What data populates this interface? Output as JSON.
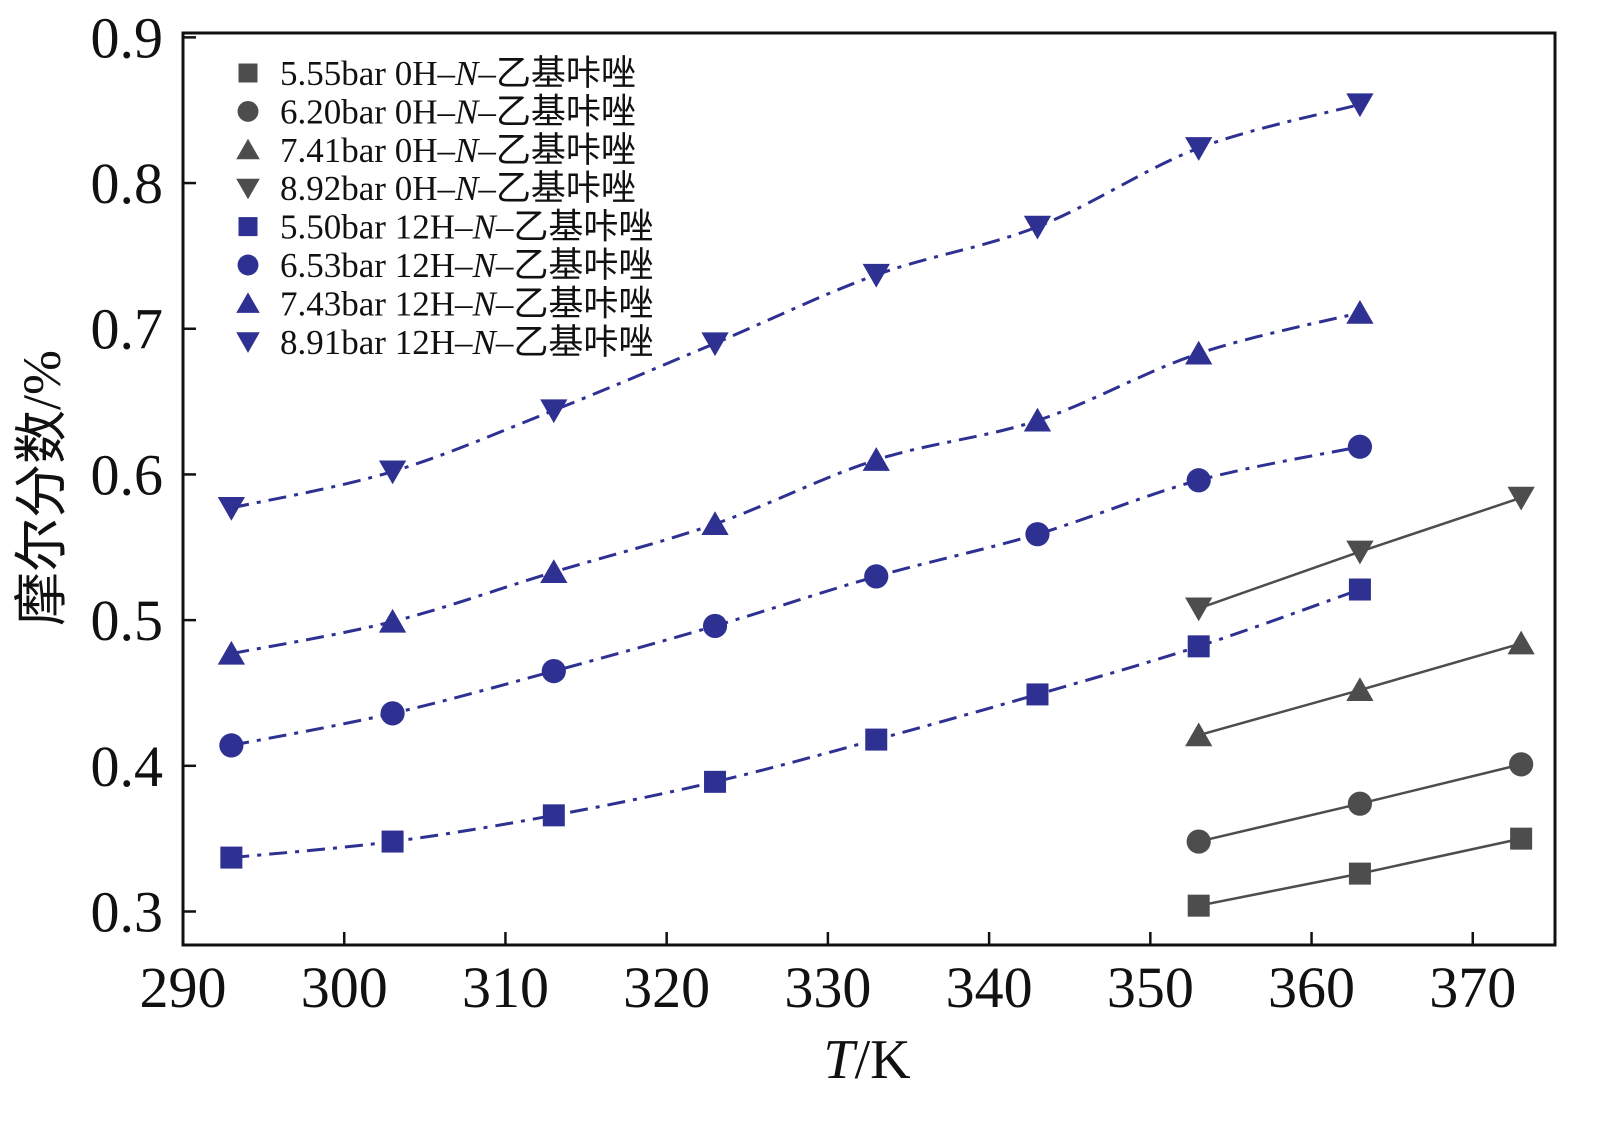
{
  "chart_data": {
    "type": "line",
    "xlabel": "T/K",
    "ylabel": "摩尔分数/%",
    "xlim": [
      290,
      375.1
    ],
    "ylim": [
      0.277,
      0.903
    ],
    "xticks": [
      290,
      300,
      310,
      320,
      330,
      340,
      350,
      360,
      370
    ],
    "yticks": [
      0.3,
      0.4,
      0.5,
      0.6,
      0.7,
      0.8,
      0.9
    ],
    "grid": false,
    "legend_position": "top-left",
    "series": [
      {
        "name": "5.55bar 0H–N–乙基咔唑",
        "marker": "square",
        "color": "#4D4D4D",
        "line_style": "solid",
        "x": [
          353,
          363,
          373
        ],
        "y": [
          0.304,
          0.326,
          0.35
        ]
      },
      {
        "name": "6.20bar 0H–N–乙基咔唑",
        "marker": "circle",
        "color": "#4D4D4D",
        "line_style": "solid",
        "x": [
          353,
          363,
          373
        ],
        "y": [
          0.348,
          0.374,
          0.401
        ]
      },
      {
        "name": "7.41bar 0H–N–乙基咔唑",
        "marker": "triangle-up",
        "color": "#4D4D4D",
        "line_style": "solid",
        "x": [
          353,
          363,
          373
        ],
        "y": [
          0.421,
          0.452,
          0.484
        ]
      },
      {
        "name": "8.92bar 0H–N–乙基咔唑",
        "marker": "triangle-down",
        "color": "#4D4D4D",
        "line_style": "solid",
        "x": [
          353,
          363,
          373
        ],
        "y": [
          0.508,
          0.547,
          0.584
        ]
      },
      {
        "name": "5.50bar 12H–N–乙基咔唑",
        "marker": "square",
        "color": "#2E3192",
        "line_style": "dash-dot",
        "x": [
          293,
          303,
          313,
          323,
          333,
          343,
          353,
          363
        ],
        "y": [
          0.337,
          0.348,
          0.366,
          0.389,
          0.418,
          0.449,
          0.482,
          0.521
        ]
      },
      {
        "name": "6.53bar 12H–N–乙基咔唑",
        "marker": "circle",
        "color": "#2E3192",
        "line_style": "dash-dot",
        "x": [
          293,
          303,
          313,
          323,
          333,
          343,
          353,
          363
        ],
        "y": [
          0.414,
          0.436,
          0.465,
          0.496,
          0.53,
          0.559,
          0.596,
          0.619
        ]
      },
      {
        "name": "7.43bar 12H–N–乙基咔唑",
        "marker": "triangle-up",
        "color": "#2E3192",
        "line_style": "dash-dot",
        "x": [
          293,
          303,
          313,
          323,
          333,
          343,
          353,
          363
        ],
        "y": [
          0.477,
          0.499,
          0.533,
          0.566,
          0.61,
          0.637,
          0.683,
          0.711
        ]
      },
      {
        "name": "8.91bar 12H–N–乙基咔唑",
        "marker": "triangle-down",
        "color": "#2E3192",
        "line_style": "dash-dot",
        "x": [
          293,
          303,
          313,
          323,
          333,
          343,
          353,
          363
        ],
        "y": [
          0.577,
          0.602,
          0.644,
          0.69,
          0.737,
          0.77,
          0.824,
          0.854
        ]
      }
    ]
  }
}
